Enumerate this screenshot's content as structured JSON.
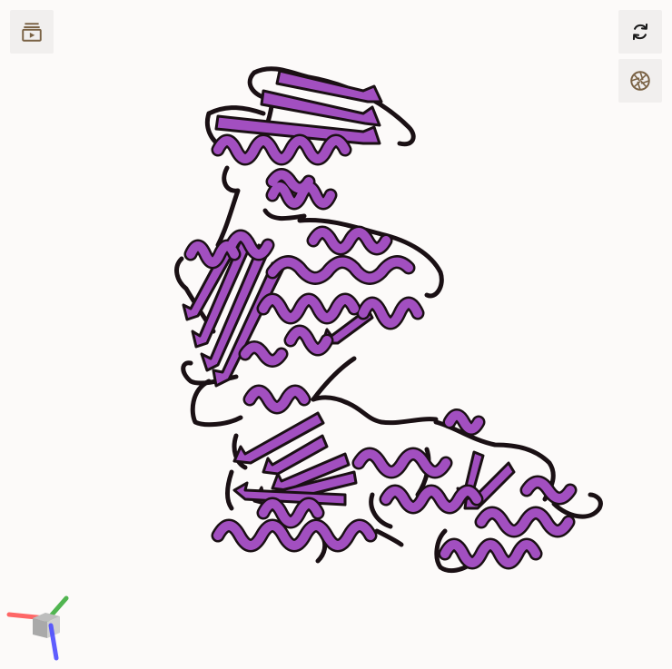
{
  "viewer": {
    "background": "#fcfaf9",
    "cartoon_color": "#a24fc0",
    "outline_color": "#1a1014",
    "representation": "cartoon"
  },
  "toolbar": {
    "left": [
      {
        "icon": "playlist-play-icon"
      }
    ],
    "right": [
      {
        "icon": "refresh-icon"
      },
      {
        "icon": "camera-aperture-icon"
      }
    ],
    "icon_color": "#7a6244"
  },
  "axes": {
    "x_color": "#ff4d4d",
    "y_color": "#3fae3f",
    "z_color": "#4d4dff"
  }
}
